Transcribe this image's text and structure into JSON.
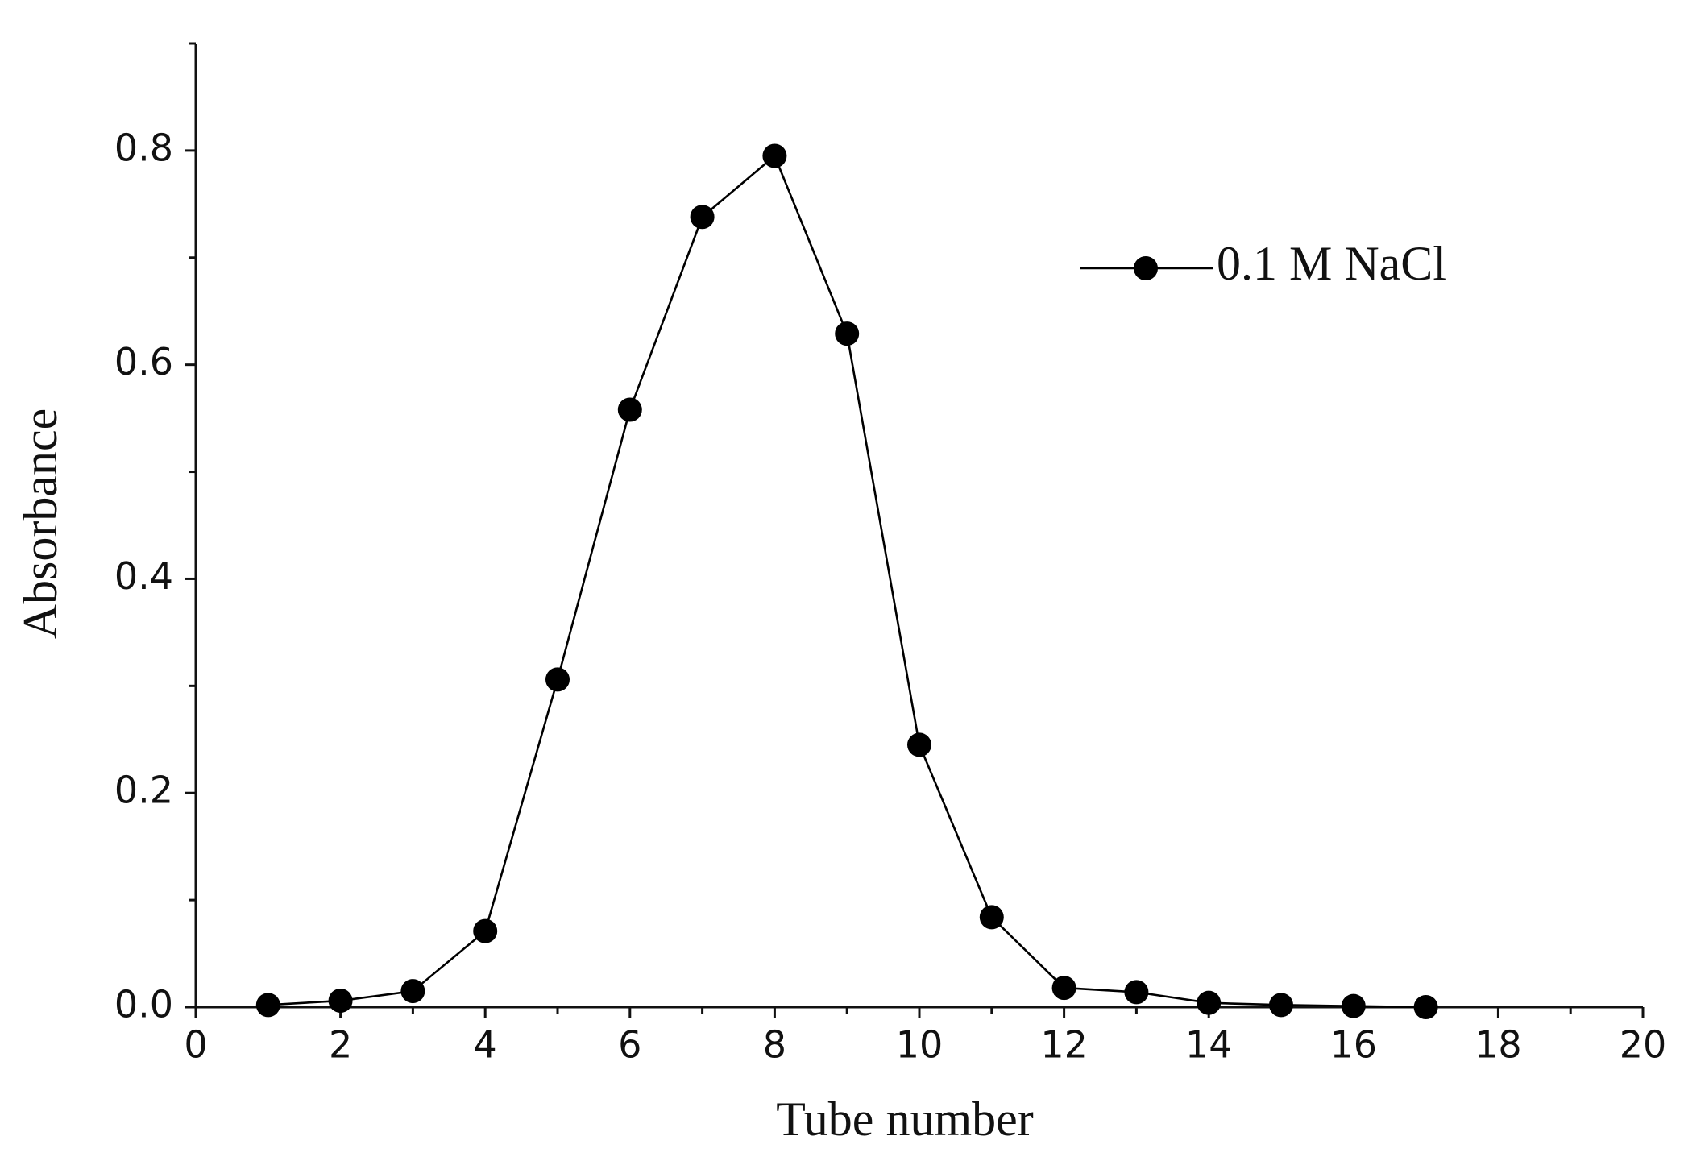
{
  "chart_data": {
    "type": "line",
    "x_label": "Tube number",
    "y_label": "Absorbance",
    "x": [
      1,
      2,
      3,
      4,
      5,
      6,
      7,
      8,
      9,
      10,
      11,
      12,
      13,
      14,
      15,
      16,
      17
    ],
    "series": [
      {
        "name": "0.1 M NaCl",
        "color": "#000000",
        "values": [
          0.002,
          0.006,
          0.015,
          0.071,
          0.306,
          0.558,
          0.738,
          0.795,
          0.629,
          0.245,
          0.084,
          0.018,
          0.014,
          0.004,
          0.002,
          0.001,
          0.0
        ]
      }
    ],
    "xlim": [
      0,
      20
    ],
    "xticks": [
      0,
      2,
      4,
      6,
      8,
      10,
      12,
      14,
      16,
      18,
      20
    ],
    "ylim": [
      0,
      0.9
    ],
    "yticks": [
      {
        "value": 0,
        "label": "0.0"
      },
      0.2,
      0.4,
      0.6,
      0.8
    ],
    "legend": "upper right",
    "grid": false
  }
}
